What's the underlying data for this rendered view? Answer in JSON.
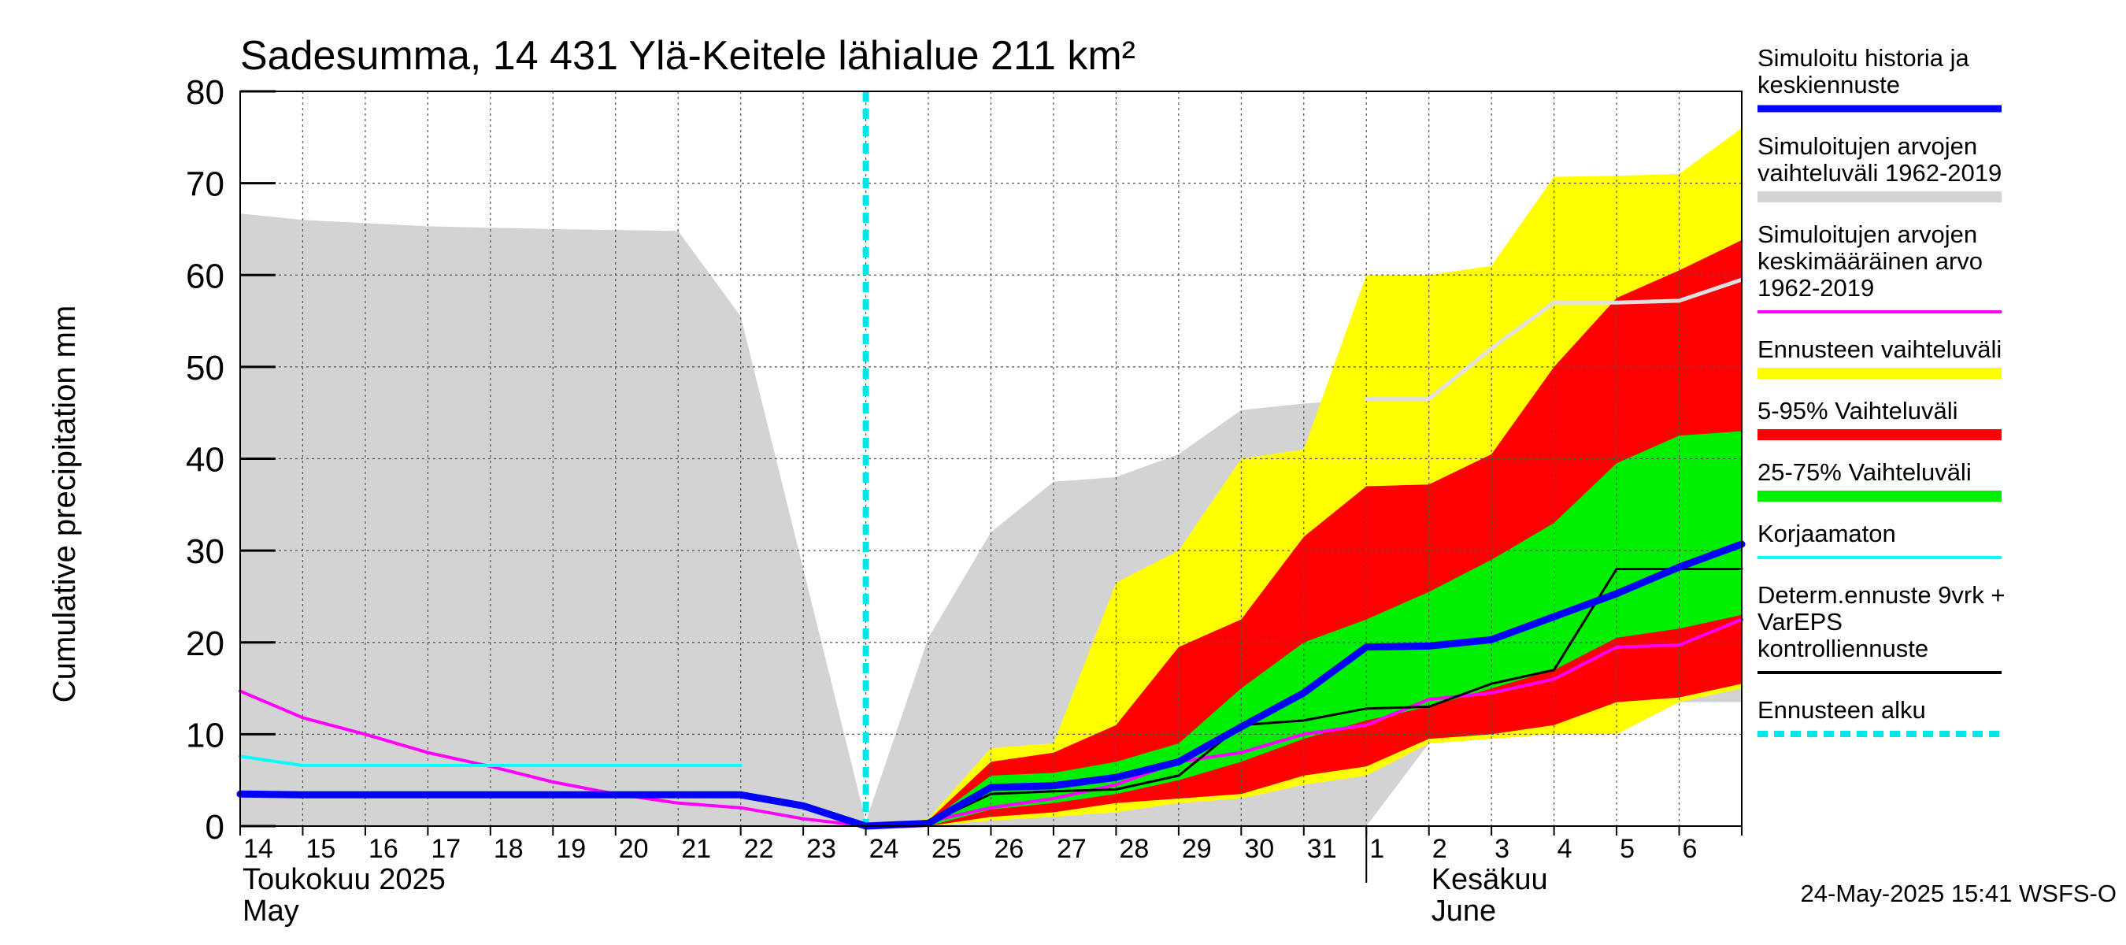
{
  "chart_data": {
    "type": "area",
    "title": "Sadesumma, 14 431 Ylä-Keitele lähialue 211 km²",
    "ylabel": "Cumulative precipitation   mm",
    "xlabel": "",
    "ylim": [
      0,
      80
    ],
    "yticks": [
      0,
      10,
      20,
      30,
      40,
      50,
      60,
      70,
      80
    ],
    "grid": true,
    "legend_position": "right",
    "x_dates": [
      "2025-05-14",
      "2025-05-15",
      "2025-05-16",
      "2025-05-17",
      "2025-05-18",
      "2025-05-19",
      "2025-05-20",
      "2025-05-21",
      "2025-05-22",
      "2025-05-23",
      "2025-05-24",
      "2025-05-25",
      "2025-05-26",
      "2025-05-27",
      "2025-05-28",
      "2025-05-29",
      "2025-05-30",
      "2025-05-31",
      "2025-06-01",
      "2025-06-02",
      "2025-06-03",
      "2025-06-04",
      "2025-06-05",
      "2025-06-06",
      "2025-06-07"
    ],
    "x_tick_labels": [
      "14",
      "15",
      "16",
      "17",
      "18",
      "19",
      "20",
      "21",
      "22",
      "23",
      "24",
      "25",
      "26",
      "27",
      "28",
      "29",
      "30",
      "31",
      "1",
      "2",
      "3",
      "4",
      "5",
      "6"
    ],
    "month_labels": [
      {
        "line1": "Toukokuu  2025",
        "line2": "May",
        "date": "2025-05-14"
      },
      {
        "line1": "Kesäkuu",
        "line2": "June",
        "date": "2025-06-02"
      }
    ],
    "month_separator_date": "2025-06-01",
    "forecast_start_date": "2025-05-24",
    "series": [
      {
        "name": "Simuloitujen arvojen vaihteluväli 1962-2019",
        "kind": "band",
        "color": "#d3d3d3",
        "x": [
          "2025-05-14",
          "2025-05-15",
          "2025-05-17",
          "2025-05-19",
          "2025-05-21",
          "2025-05-22",
          "2025-05-24",
          "2025-05-25",
          "2025-05-26",
          "2025-05-27",
          "2025-05-28",
          "2025-05-29",
          "2025-05-30",
          "2025-05-31",
          "2025-06-01",
          "2025-06-02",
          "2025-06-03",
          "2025-06-04",
          "2025-06-05",
          "2025-06-06",
          "2025-06-07"
        ],
        "upper": [
          66.7,
          66.0,
          65.3,
          65.0,
          64.8,
          55.5,
          0.5,
          20.5,
          32.0,
          37.5,
          38.0,
          40.5,
          45.3,
          46.0,
          46.5,
          46.5,
          51.0,
          56.0,
          57.0,
          57.5,
          59.0
        ],
        "lower": [
          0,
          0,
          0,
          0,
          0,
          0,
          0,
          0,
          0,
          0,
          0,
          0,
          0,
          0,
          0,
          9.0,
          9.5,
          10.0,
          10.0,
          13.5,
          13.5
        ]
      },
      {
        "name": "Ennusteen vaihteluväli",
        "kind": "band",
        "color": "#ffff00",
        "x": [
          "2025-05-24",
          "2025-05-25",
          "2025-05-26",
          "2025-05-27",
          "2025-05-28",
          "2025-05-29",
          "2025-05-30",
          "2025-05-31",
          "2025-06-01",
          "2025-06-02",
          "2025-06-03",
          "2025-06-04",
          "2025-06-05",
          "2025-06-06",
          "2025-06-07"
        ],
        "upper": [
          0,
          0.8,
          8.5,
          9.0,
          26.5,
          30.0,
          40.0,
          41.0,
          60.0,
          60.0,
          61.0,
          70.7,
          70.8,
          71.0,
          76.0
        ],
        "lower": [
          0,
          0,
          0.6,
          1.0,
          1.5,
          2.5,
          3.0,
          4.5,
          5.5,
          9.0,
          9.5,
          10.0,
          10.0,
          13.5,
          15.0
        ]
      },
      {
        "name": "5-95% Vaihteluväli",
        "kind": "band",
        "color": "#ff0000",
        "x": [
          "2025-05-24",
          "2025-05-25",
          "2025-05-26",
          "2025-05-27",
          "2025-05-28",
          "2025-05-29",
          "2025-05-30",
          "2025-05-31",
          "2025-06-01",
          "2025-06-02",
          "2025-06-03",
          "2025-06-04",
          "2025-06-05",
          "2025-06-06",
          "2025-06-07"
        ],
        "upper": [
          0,
          0.6,
          7.0,
          8.0,
          11.0,
          19.5,
          22.5,
          31.5,
          37.0,
          37.2,
          40.5,
          50.0,
          57.5,
          60.5,
          63.8
        ],
        "lower": [
          0,
          0,
          1.0,
          1.5,
          2.5,
          3.0,
          3.5,
          5.5,
          6.5,
          9.5,
          10.0,
          11.0,
          13.5,
          14.0,
          15.5
        ]
      },
      {
        "name": "25-75% Vaihteluväli",
        "kind": "band",
        "color": "#00ee00",
        "x": [
          "2025-05-24",
          "2025-05-25",
          "2025-05-26",
          "2025-05-27",
          "2025-05-28",
          "2025-05-29",
          "2025-05-30",
          "2025-05-31",
          "2025-06-01",
          "2025-06-02",
          "2025-06-03",
          "2025-06-04",
          "2025-06-05",
          "2025-06-06",
          "2025-06-07"
        ],
        "upper": [
          0,
          0.4,
          5.5,
          5.8,
          7.0,
          9.0,
          15.0,
          20.0,
          22.5,
          25.5,
          29.0,
          33.0,
          39.5,
          42.5,
          43.0
        ],
        "lower": [
          0,
          0,
          1.8,
          2.5,
          3.5,
          5.0,
          7.0,
          9.5,
          11.5,
          13.0,
          15.0,
          17.0,
          20.5,
          21.5,
          23.0
        ]
      },
      {
        "name": "Simuloitujen arvojen keskimääräinen arvo 1962-2019",
        "kind": "line",
        "color": "#ff00ff",
        "width": 4,
        "x": [
          "2025-05-14",
          "2025-05-15",
          "2025-05-16",
          "2025-05-17",
          "2025-05-18",
          "2025-05-19",
          "2025-05-20",
          "2025-05-21",
          "2025-05-22",
          "2025-05-23",
          "2025-05-24",
          "2025-05-25",
          "2025-05-26",
          "2025-05-27",
          "2025-05-28",
          "2025-05-29",
          "2025-05-30",
          "2025-05-31",
          "2025-06-01",
          "2025-06-02",
          "2025-06-03",
          "2025-06-04",
          "2025-06-05",
          "2025-06-06",
          "2025-06-07"
        ],
        "y": [
          14.7,
          11.8,
          10.0,
          8.0,
          6.5,
          4.8,
          3.5,
          2.5,
          2.0,
          0.8,
          0,
          0.5,
          2.0,
          3.0,
          4.5,
          7.0,
          8.0,
          10.0,
          11.0,
          13.8,
          14.5,
          16.0,
          19.5,
          19.7,
          22.5
        ]
      },
      {
        "name": "Simuloitujen arvojen keskimääräinen arvo 1962-2019 (mean reference)",
        "kind": "line",
        "color": "#e0e0e0",
        "width": 5,
        "x": [
          "2025-06-01",
          "2025-06-02",
          "2025-06-03",
          "2025-06-04",
          "2025-06-05",
          "2025-06-06",
          "2025-06-07"
        ],
        "y": [
          46.5,
          46.5,
          52.0,
          57.0,
          57.0,
          57.2,
          59.5
        ]
      },
      {
        "name": "Korjaamaton",
        "kind": "line",
        "color": "#00ffff",
        "width": 4,
        "x": [
          "2025-05-14",
          "2025-05-15",
          "2025-05-16",
          "2025-05-17",
          "2025-05-18",
          "2025-05-19",
          "2025-05-20",
          "2025-05-21",
          "2025-05-22"
        ],
        "y": [
          7.6,
          6.6,
          6.6,
          6.6,
          6.6,
          6.6,
          6.6,
          6.6,
          6.6
        ]
      },
      {
        "name": "Determ.ennuste 9vrk + VarEPS kontrolliennuste",
        "kind": "line",
        "color": "#000000",
        "width": 3,
        "x": [
          "2025-05-24",
          "2025-05-25",
          "2025-05-26",
          "2025-05-27",
          "2025-05-28",
          "2025-05-29",
          "2025-05-30",
          "2025-05-31",
          "2025-06-01",
          "2025-06-02",
          "2025-06-03",
          "2025-06-04",
          "2025-06-05",
          "2025-06-06",
          "2025-06-07"
        ],
        "y": [
          0,
          0.3,
          3.5,
          3.8,
          4.0,
          5.5,
          11.0,
          11.5,
          12.8,
          13.0,
          15.5,
          17.0,
          28.0,
          28.0,
          28.0
        ]
      },
      {
        "name": "Simuloitu historia ja keskiennuste",
        "kind": "line",
        "color": "#0000ff",
        "width": 9,
        "x": [
          "2025-05-14",
          "2025-05-15",
          "2025-05-16",
          "2025-05-17",
          "2025-05-18",
          "2025-05-19",
          "2025-05-20",
          "2025-05-21",
          "2025-05-22",
          "2025-05-23",
          "2025-05-24",
          "2025-05-25",
          "2025-05-26",
          "2025-05-27",
          "2025-05-28",
          "2025-05-29",
          "2025-05-30",
          "2025-05-31",
          "2025-06-01",
          "2025-06-02",
          "2025-06-03",
          "2025-06-04",
          "2025-06-05",
          "2025-06-06",
          "2025-06-07"
        ],
        "y": [
          3.5,
          3.4,
          3.4,
          3.4,
          3.4,
          3.4,
          3.4,
          3.4,
          3.4,
          2.2,
          0,
          0.3,
          4.2,
          4.4,
          5.3,
          7.0,
          10.8,
          14.5,
          19.5,
          19.6,
          20.3,
          22.8,
          25.3,
          28.2,
          30.7
        ]
      }
    ],
    "legend": [
      {
        "label": "Simuloitu historia ja keskiennuste",
        "color": "#0000ff",
        "style": "thick"
      },
      {
        "label": "Simuloitujen arvojen vaihteluväli 1962-2019",
        "color": "#d3d3d3",
        "style": "band"
      },
      {
        "label": "Simuloitujen arvojen keskimääräinen arvo 1962-2019",
        "color": "#ff00ff",
        "style": "line"
      },
      {
        "label": "Ennusteen vaihteluväli",
        "color": "#ffff00",
        "style": "band"
      },
      {
        "label": "5-95% Vaihteluväli",
        "color": "#ff0000",
        "style": "band"
      },
      {
        "label": "25-75% Vaihteluväli",
        "color": "#00ee00",
        "style": "band"
      },
      {
        "label": "Korjaamaton",
        "color": "#00ffff",
        "style": "line"
      },
      {
        "label": "Determ.ennuste 9vrk + VarEPS kontrolliennuste",
        "color": "#000000",
        "style": "line"
      },
      {
        "label": "Ennusteen alku",
        "color": "#00e5e5",
        "style": "dashed"
      }
    ],
    "timestamp": "24-May-2025 15:41 WSFS-O"
  }
}
